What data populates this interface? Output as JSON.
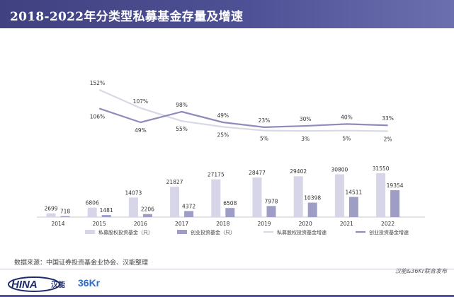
{
  "header": {
    "title": "2018-2022年分类型私募基金存量及增速"
  },
  "source": "数据来源：中国证券投资基金业协会、汉能整理",
  "footer_note": "汉能&36Kr联合发布",
  "logos": {
    "hina": "HINA",
    "hina_cn": "汉能",
    "kr": "36Kr"
  },
  "colors": {
    "equity_bar": "#d6d6e8",
    "vc_bar": "#9e9dc6",
    "equity_line": "#d9d9e6",
    "vc_line": "#8e8cbd",
    "header": "#4a4c8e"
  },
  "chart_data": {
    "type": "bar",
    "categories": [
      "2014",
      "2015",
      "2016",
      "2017",
      "2018",
      "2019",
      "2020",
      "2021",
      "2022"
    ],
    "series": [
      {
        "name": "私募股权投资基金（只）",
        "type": "bar",
        "values": [
          2699,
          6806,
          14073,
          21827,
          27175,
          28477,
          29402,
          30800,
          31550
        ]
      },
      {
        "name": "创业投资基金（只）",
        "type": "bar",
        "values": [
          718,
          1481,
          2206,
          4372,
          6508,
          7978,
          10398,
          14511,
          19354
        ]
      }
    ],
    "growth": {
      "categories": [
        "2015",
        "2016",
        "2017",
        "2018",
        "2019",
        "2020",
        "2021",
        "2022"
      ],
      "series": [
        {
          "name": "私募股权投资基金增速",
          "labels": [
            "152%",
            "107%",
            "55%",
            "25%",
            "5%",
            "3%",
            "5%",
            "2%"
          ],
          "values": [
            152,
            107,
            55,
            25,
            5,
            3,
            5,
            2
          ]
        },
        {
          "name": "创业投资基金增速",
          "labels": [
            "106%",
            "49%",
            "98%",
            "49%",
            "23%",
            "30%",
            "40%",
            "33%"
          ],
          "values": [
            106,
            49,
            98,
            49,
            23,
            30,
            40,
            33
          ]
        }
      ]
    },
    "legend": [
      "私募股权投资基金（只）",
      "创业投资基金（只）",
      "私募股权投资基金增速",
      "创业投资基金增速"
    ],
    "legend_position": "bottom",
    "grid": false
  }
}
